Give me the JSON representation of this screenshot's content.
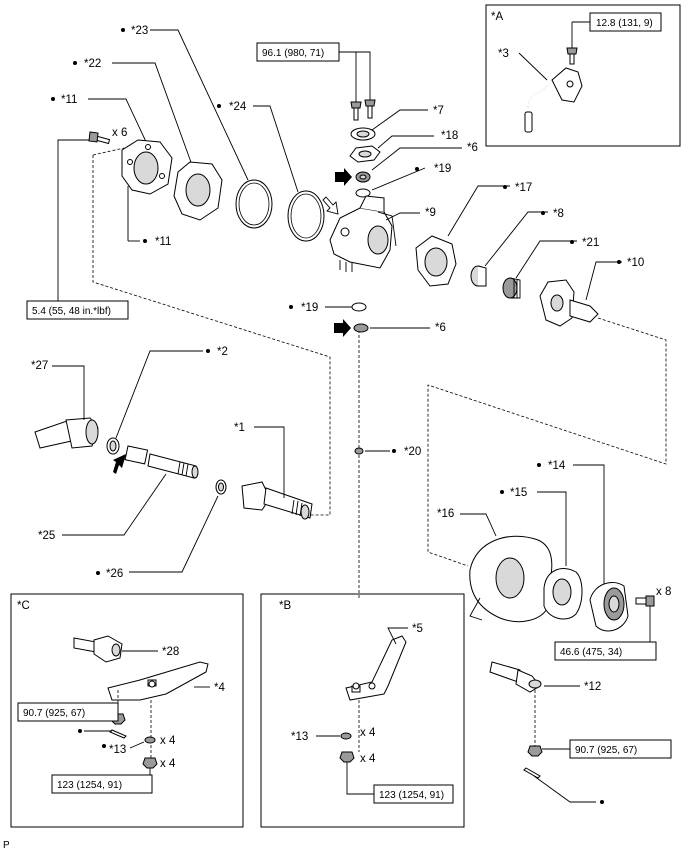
{
  "labels": {
    "p1": "*1",
    "p2": "*2",
    "p3": "*3",
    "p4": "*4",
    "p5": "*5",
    "p6a": "*6",
    "p6b": "*6",
    "p7": "*7",
    "p8": "*8",
    "p9": "*9",
    "p10": "*10",
    "p11a": "*11",
    "p11b": "*11",
    "p12": "*12",
    "p13a": "*13",
    "p13b": "*13",
    "p14": "*14",
    "p15": "*15",
    "p16": "*16",
    "p17": "*17",
    "p18": "*18",
    "p19a": "*19",
    "p19b": "*19",
    "p20": "*20",
    "p21": "*21",
    "p22": "*22",
    "p23": "*23",
    "p24": "*24",
    "p25": "*25",
    "p26": "*26",
    "p27": "*27",
    "p28": "*28"
  },
  "insets": {
    "a": "*A",
    "b": "*B",
    "c": "*C"
  },
  "quantities": {
    "bolt_x6": "x 6",
    "hub_x8": "x 8",
    "b_x4_top": "x 4",
    "b_x4_bottom": "x 4",
    "c_x4_top": "x 4",
    "c_x4_bottom": "x 4"
  },
  "torques": {
    "sensor": "12.8 (131, 9)",
    "knuckle_bolts": "96.1 (980, 71)",
    "cover_bolts": "5.4 (55, 48 in.*lbf)",
    "hub_bolts": "46.6 (475, 34)",
    "tie_rod_nut": "90.7 (925, 67)",
    "b_arm_nuts": "123 (1254, 91)",
    "c_tie_rod_nut": "90.7 (925, 67)",
    "c_arm_nuts": "123 (1254, 91)"
  },
  "footer": "P",
  "symbols": {
    "non_reusable": "black-dot-icon",
    "precoated": "black-arrow-icon",
    "mp_grease": "outline-arrow-icon"
  }
}
